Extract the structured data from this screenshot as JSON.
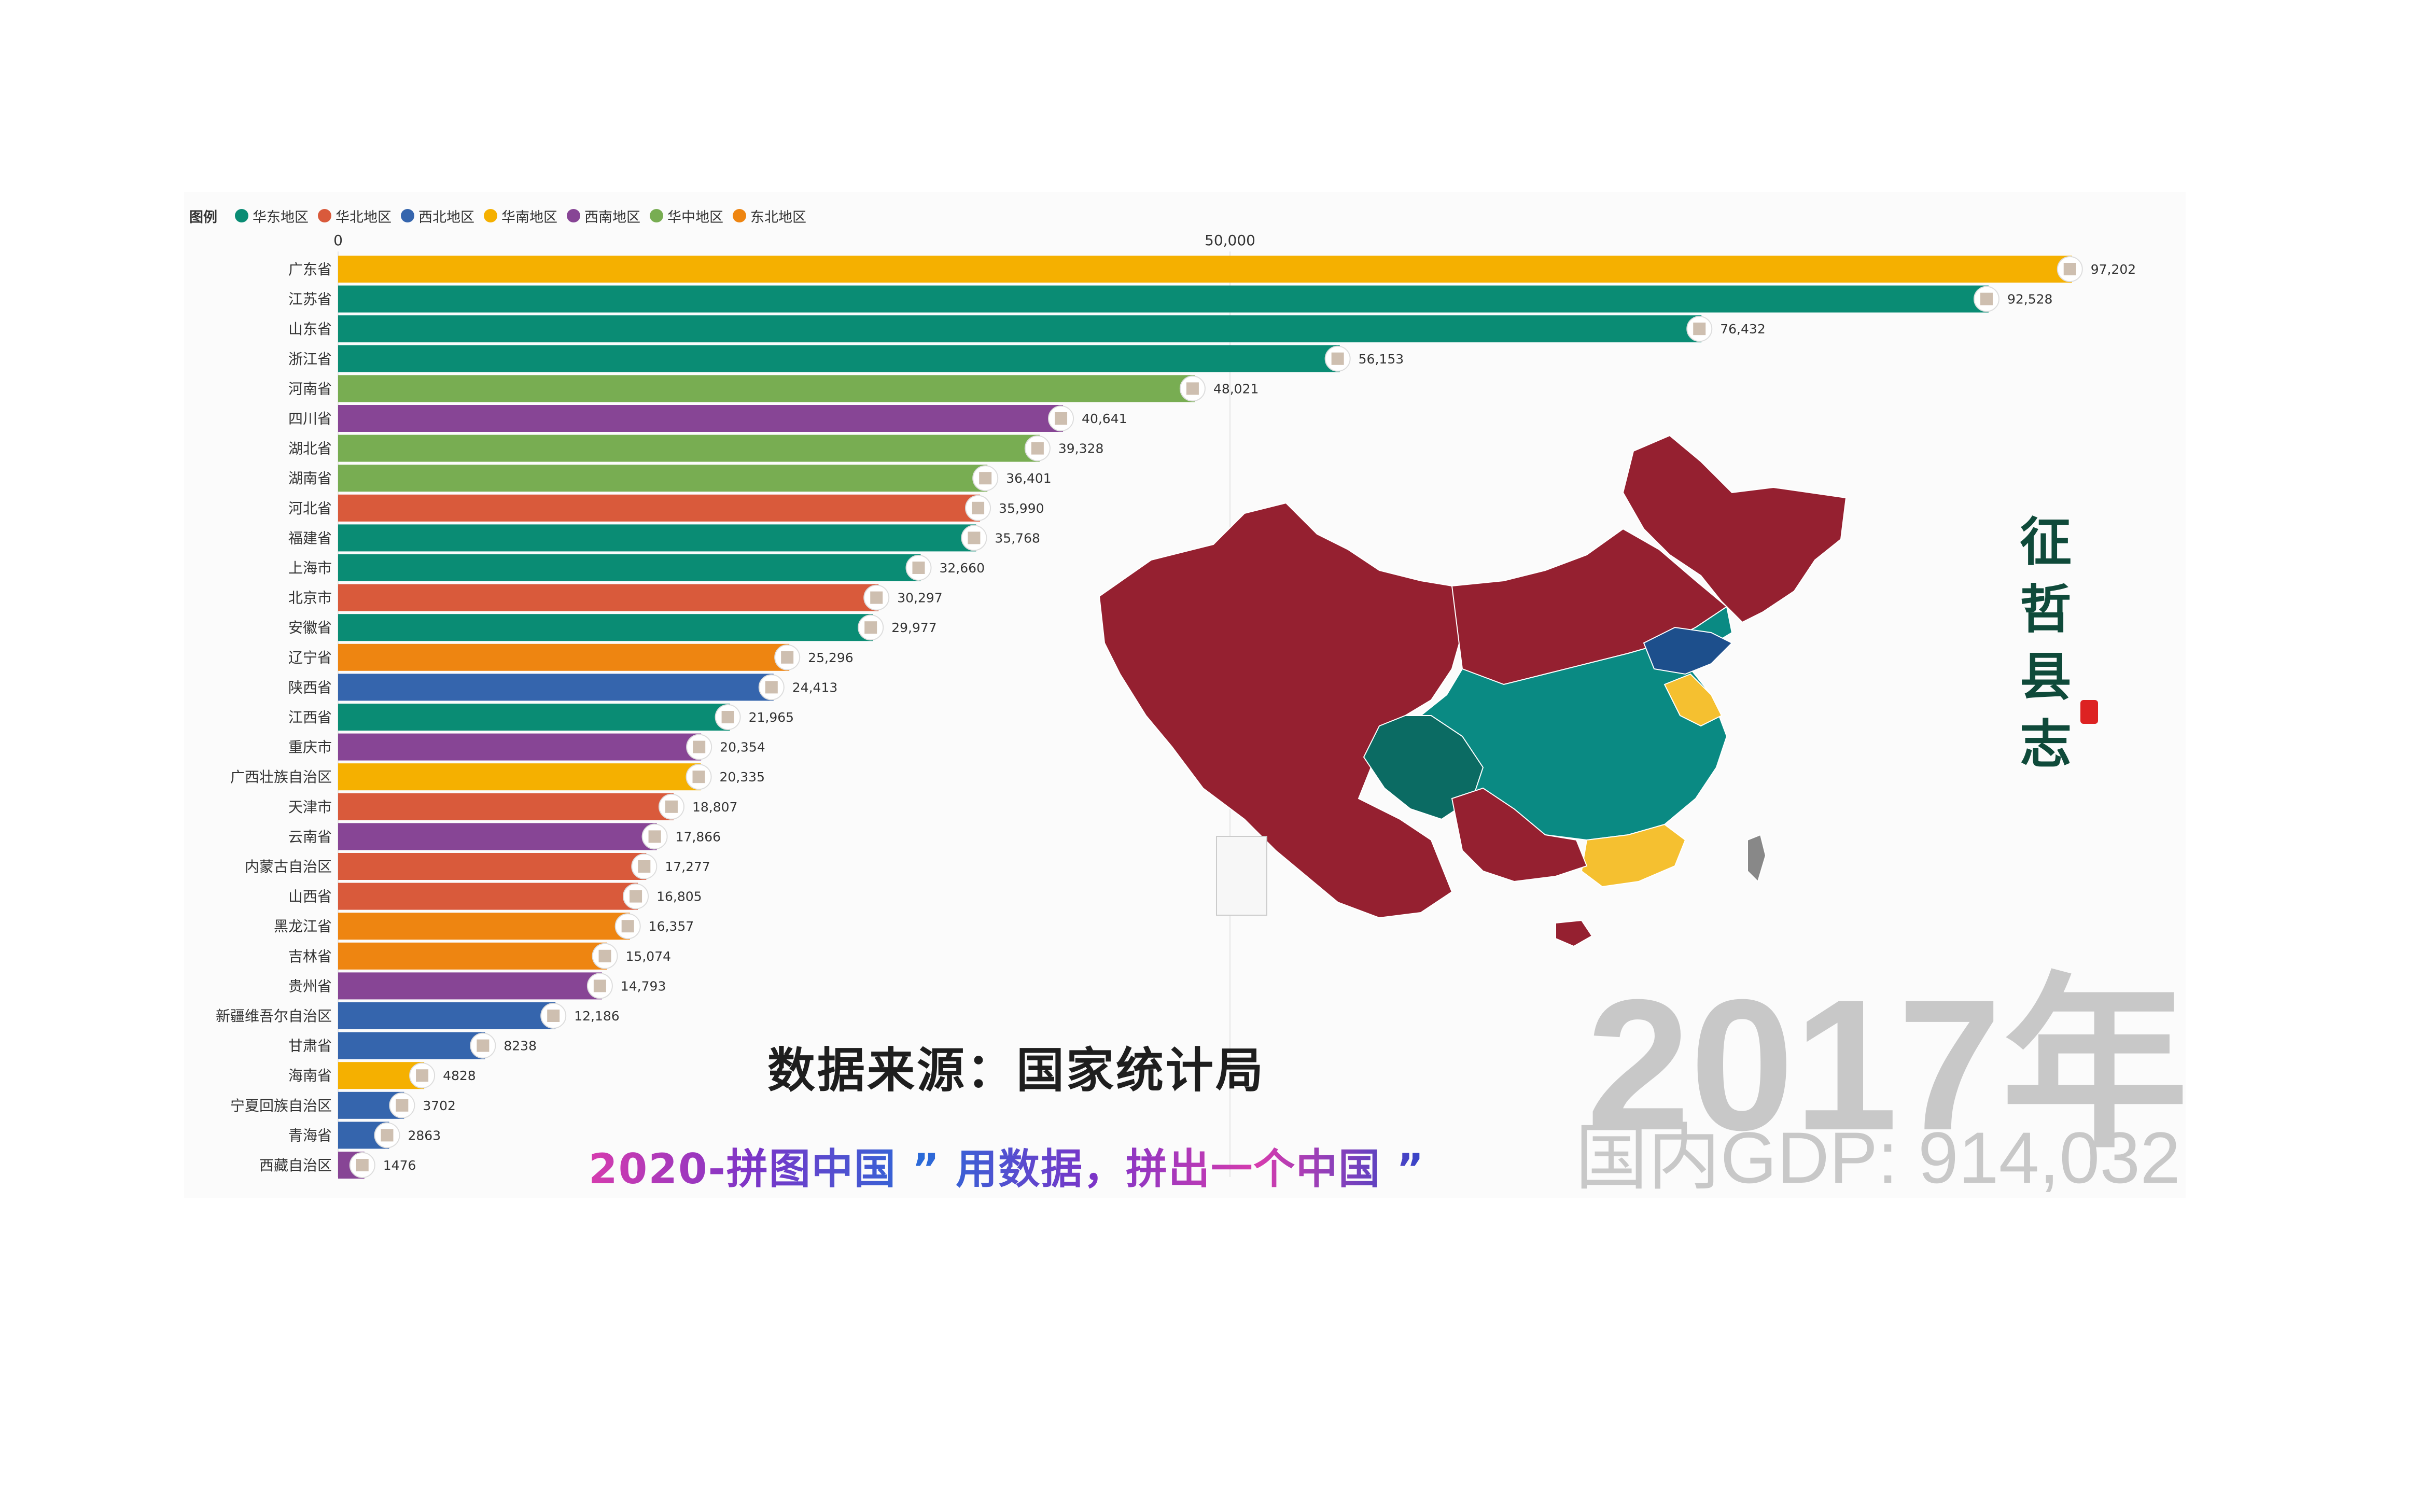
{
  "legend": {
    "title": "图例",
    "items": [
      {
        "label": "华东地区",
        "color": "#0a8c74"
      },
      {
        "label": "华北地区",
        "color": "#d95a3b"
      },
      {
        "label": "西北地区",
        "color": "#3565ad"
      },
      {
        "label": "华南地区",
        "color": "#f5b000"
      },
      {
        "label": "西南地区",
        "color": "#874595"
      },
      {
        "label": "华中地区",
        "color": "#78ad52"
      },
      {
        "label": "东北地区",
        "color": "#ee8511"
      }
    ]
  },
  "chart_data": {
    "type": "bar",
    "orientation": "horizontal",
    "x_ticks": [
      "0",
      "50,000"
    ],
    "xlim": [
      0,
      100000
    ],
    "grid": true,
    "legend_placement": "top-left",
    "series": [
      {
        "category": "广东省",
        "value": 97202,
        "label": "97,202",
        "region": "华南地区"
      },
      {
        "category": "江苏省",
        "value": 92528,
        "label": "92,528",
        "region": "华东地区"
      },
      {
        "category": "山东省",
        "value": 76432,
        "label": "76,432",
        "region": "华东地区"
      },
      {
        "category": "浙江省",
        "value": 56153,
        "label": "56,153",
        "region": "华东地区"
      },
      {
        "category": "河南省",
        "value": 48021,
        "label": "48,021",
        "region": "华中地区"
      },
      {
        "category": "四川省",
        "value": 40641,
        "label": "40,641",
        "region": "西南地区"
      },
      {
        "category": "湖北省",
        "value": 39328,
        "label": "39,328",
        "region": "华中地区"
      },
      {
        "category": "湖南省",
        "value": 36401,
        "label": "36,401",
        "region": "华中地区"
      },
      {
        "category": "河北省",
        "value": 35990,
        "label": "35,990",
        "region": "华北地区"
      },
      {
        "category": "福建省",
        "value": 35768,
        "label": "35,768",
        "region": "华东地区"
      },
      {
        "category": "上海市",
        "value": 32660,
        "label": "32,660",
        "region": "华东地区"
      },
      {
        "category": "北京市",
        "value": 30297,
        "label": "30,297",
        "region": "华北地区"
      },
      {
        "category": "安徽省",
        "value": 29977,
        "label": "29,977",
        "region": "华东地区"
      },
      {
        "category": "辽宁省",
        "value": 25296,
        "label": "25,296",
        "region": "东北地区"
      },
      {
        "category": "陕西省",
        "value": 24413,
        "label": "24,413",
        "region": "西北地区"
      },
      {
        "category": "江西省",
        "value": 21965,
        "label": "21,965",
        "region": "华东地区"
      },
      {
        "category": "重庆市",
        "value": 20354,
        "label": "20,354",
        "region": "西南地区"
      },
      {
        "category": "广西壮族自治区",
        "value": 20335,
        "label": "20,335",
        "region": "华南地区"
      },
      {
        "category": "天津市",
        "value": 18807,
        "label": "18,807",
        "region": "华北地区"
      },
      {
        "category": "云南省",
        "value": 17866,
        "label": "17,866",
        "region": "西南地区"
      },
      {
        "category": "内蒙古自治区",
        "value": 17277,
        "label": "17,277",
        "region": "华北地区"
      },
      {
        "category": "山西省",
        "value": 16805,
        "label": "16,805",
        "region": "华北地区"
      },
      {
        "category": "黑龙江省",
        "value": 16357,
        "label": "16,357",
        "region": "东北地区"
      },
      {
        "category": "吉林省",
        "value": 15074,
        "label": "15,074",
        "region": "东北地区"
      },
      {
        "category": "贵州省",
        "value": 14793,
        "label": "14,793",
        "region": "西南地区"
      },
      {
        "category": "新疆维吾尔自治区",
        "value": 12186,
        "label": "12,186",
        "region": "西北地区"
      },
      {
        "category": "甘肃省",
        "value": 8238,
        "label": "8238",
        "region": "西北地区"
      },
      {
        "category": "海南省",
        "value": 4828,
        "label": "4828",
        "region": "华南地区"
      },
      {
        "category": "宁夏回族自治区",
        "value": 3702,
        "label": "3702",
        "region": "西北地区"
      },
      {
        "category": "青海省",
        "value": 2863,
        "label": "2863",
        "region": "西北地区"
      },
      {
        "category": "西藏自治区",
        "value": 1476,
        "label": "1476",
        "region": "西南地区"
      }
    ]
  },
  "overlay": {
    "source": "数据来源：国家统计局",
    "slogan": "2020-拼图中国 ” 用数据，拼出一个中国 ”",
    "year": "2017年",
    "gdp": "国内GDP: 914,032",
    "calligraphy": [
      "征",
      "哲",
      "县",
      "志"
    ]
  },
  "map": {
    "colors": {
      "dark_red": "#952030",
      "teal": "#0a8a83",
      "yellow": "#f5c030",
      "blue": "#1d4f8c"
    }
  }
}
